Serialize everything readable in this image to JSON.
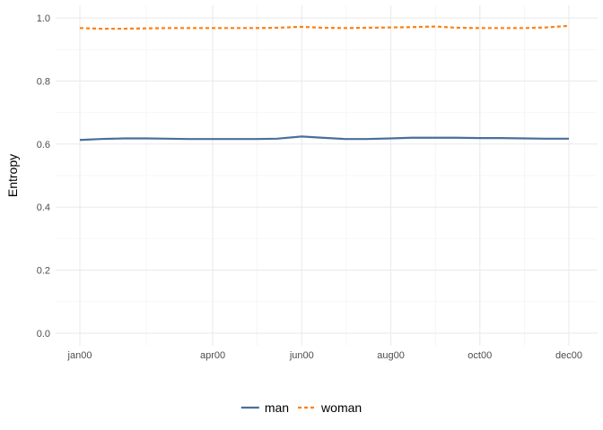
{
  "chart_data": {
    "type": "line",
    "title": "",
    "xlabel": "",
    "ylabel": "Entropy",
    "x": [
      "2000-01-01",
      "2000-01-15",
      "2000-02-01",
      "2000-02-15",
      "2000-03-01",
      "2000-03-15",
      "2000-04-01",
      "2000-04-15",
      "2000-05-01",
      "2000-05-15",
      "2000-06-01",
      "2000-06-15",
      "2000-07-01",
      "2000-07-15",
      "2000-08-01",
      "2000-08-15",
      "2000-09-01",
      "2000-09-15",
      "2000-10-01",
      "2000-10-15",
      "2000-11-01",
      "2000-11-15",
      "2000-12-01"
    ],
    "x_ticks": [
      {
        "date": "2000-01-01",
        "label": "jan00"
      },
      {
        "date": "2000-04-01",
        "label": "apr00"
      },
      {
        "date": "2000-06-01",
        "label": "jun00"
      },
      {
        "date": "2000-08-01",
        "label": "aug00"
      },
      {
        "date": "2000-10-01",
        "label": "oct00"
      },
      {
        "date": "2000-12-01",
        "label": "dec00"
      }
    ],
    "xlim": [
      "2000-01-01",
      "2000-12-01"
    ],
    "ylim": [
      -0.04,
      1.04
    ],
    "y_ticks": [
      0.0,
      0.2,
      0.4,
      0.6,
      0.8,
      1.0
    ],
    "y_tick_labels": [
      "0.0",
      "0.2",
      "0.4",
      "0.6",
      "0.8",
      "1.0"
    ],
    "grid": true,
    "legend_position": "bottom",
    "series": [
      {
        "name": "man",
        "color": "#4a6f99",
        "dash": "solid",
        "values": [
          0.613,
          0.616,
          0.618,
          0.618,
          0.617,
          0.616,
          0.616,
          0.616,
          0.616,
          0.617,
          0.624,
          0.62,
          0.616,
          0.616,
          0.618,
          0.62,
          0.62,
          0.62,
          0.619,
          0.619,
          0.618,
          0.617,
          0.617
        ]
      },
      {
        "name": "woman",
        "color": "#ff7f0e",
        "dash": "dashed",
        "values": [
          0.968,
          0.966,
          0.966,
          0.967,
          0.968,
          0.968,
          0.968,
          0.968,
          0.968,
          0.969,
          0.972,
          0.969,
          0.968,
          0.969,
          0.97,
          0.971,
          0.973,
          0.969,
          0.968,
          0.968,
          0.968,
          0.97,
          0.975
        ]
      }
    ]
  }
}
